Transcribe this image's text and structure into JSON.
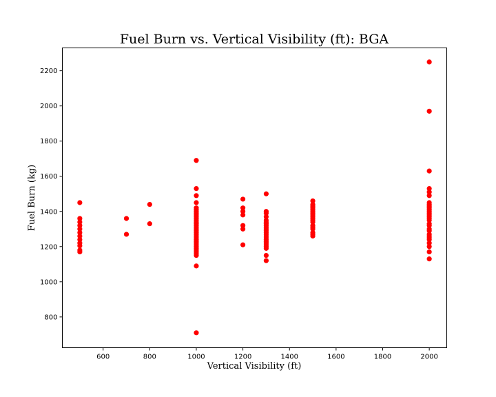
{
  "chart_data": {
    "type": "scatter",
    "title": "Fuel Burn vs. Vertical Visibility (ft): BGA",
    "xlabel": "Vertical Visibility (ft)",
    "ylabel": "Fuel Burn (kg)",
    "xlim": [
      425,
      2075
    ],
    "ylim": [
      625,
      2330
    ],
    "xticks": [
      600,
      800,
      1000,
      1200,
      1400,
      1600,
      1800,
      2000
    ],
    "yticks": [
      800,
      1000,
      1200,
      1400,
      1600,
      1800,
      2000,
      2200
    ],
    "grid": false,
    "marker_color": "#ff0000",
    "series": [
      {
        "points": [
          [
            500,
            1450
          ],
          [
            500,
            1360
          ],
          [
            500,
            1340
          ],
          [
            500,
            1320
          ],
          [
            500,
            1300
          ],
          [
            500,
            1280
          ],
          [
            500,
            1260
          ],
          [
            500,
            1240
          ],
          [
            500,
            1220
          ],
          [
            500,
            1205
          ],
          [
            500,
            1180
          ],
          [
            500,
            1170
          ],
          [
            700,
            1360
          ],
          [
            700,
            1270
          ],
          [
            800,
            1440
          ],
          [
            800,
            1330
          ],
          [
            1000,
            1690
          ],
          [
            1000,
            1530
          ],
          [
            1000,
            1490
          ],
          [
            1000,
            1450
          ],
          [
            1000,
            1420
          ],
          [
            1000,
            1410
          ],
          [
            1000,
            1400
          ],
          [
            1000,
            1390
          ],
          [
            1000,
            1380
          ],
          [
            1000,
            1370
          ],
          [
            1000,
            1360
          ],
          [
            1000,
            1350
          ],
          [
            1000,
            1340
          ],
          [
            1000,
            1330
          ],
          [
            1000,
            1320
          ],
          [
            1000,
            1310
          ],
          [
            1000,
            1300
          ],
          [
            1000,
            1290
          ],
          [
            1000,
            1280
          ],
          [
            1000,
            1270
          ],
          [
            1000,
            1260
          ],
          [
            1000,
            1250
          ],
          [
            1000,
            1240
          ],
          [
            1000,
            1230
          ],
          [
            1000,
            1220
          ],
          [
            1000,
            1210
          ],
          [
            1000,
            1200
          ],
          [
            1000,
            1190
          ],
          [
            1000,
            1180
          ],
          [
            1000,
            1170
          ],
          [
            1000,
            1160
          ],
          [
            1000,
            1150
          ],
          [
            1000,
            1090
          ],
          [
            1000,
            710
          ],
          [
            1200,
            1470
          ],
          [
            1200,
            1420
          ],
          [
            1200,
            1400
          ],
          [
            1200,
            1380
          ],
          [
            1200,
            1320
          ],
          [
            1200,
            1300
          ],
          [
            1200,
            1210
          ],
          [
            1300,
            1500
          ],
          [
            1300,
            1400
          ],
          [
            1300,
            1390
          ],
          [
            1300,
            1370
          ],
          [
            1300,
            1350
          ],
          [
            1300,
            1340
          ],
          [
            1300,
            1330
          ],
          [
            1300,
            1320
          ],
          [
            1300,
            1310
          ],
          [
            1300,
            1300
          ],
          [
            1300,
            1290
          ],
          [
            1300,
            1280
          ],
          [
            1300,
            1270
          ],
          [
            1300,
            1260
          ],
          [
            1300,
            1250
          ],
          [
            1300,
            1240
          ],
          [
            1300,
            1230
          ],
          [
            1300,
            1220
          ],
          [
            1300,
            1210
          ],
          [
            1300,
            1200
          ],
          [
            1300,
            1190
          ],
          [
            1300,
            1150
          ],
          [
            1300,
            1120
          ],
          [
            1500,
            1460
          ],
          [
            1500,
            1440
          ],
          [
            1500,
            1430
          ],
          [
            1500,
            1420
          ],
          [
            1500,
            1410
          ],
          [
            1500,
            1400
          ],
          [
            1500,
            1390
          ],
          [
            1500,
            1380
          ],
          [
            1500,
            1370
          ],
          [
            1500,
            1360
          ],
          [
            1500,
            1350
          ],
          [
            1500,
            1340
          ],
          [
            1500,
            1320
          ],
          [
            1500,
            1310
          ],
          [
            1500,
            1300
          ],
          [
            1500,
            1280
          ],
          [
            1500,
            1270
          ],
          [
            1500,
            1260
          ],
          [
            2000,
            2250
          ],
          [
            2000,
            1970
          ],
          [
            2000,
            1630
          ],
          [
            2000,
            1530
          ],
          [
            2000,
            1510
          ],
          [
            2000,
            1490
          ],
          [
            2000,
            1450
          ],
          [
            2000,
            1440
          ],
          [
            2000,
            1430
          ],
          [
            2000,
            1420
          ],
          [
            2000,
            1410
          ],
          [
            2000,
            1400
          ],
          [
            2000,
            1390
          ],
          [
            2000,
            1380
          ],
          [
            2000,
            1370
          ],
          [
            2000,
            1360
          ],
          [
            2000,
            1350
          ],
          [
            2000,
            1330
          ],
          [
            2000,
            1320
          ],
          [
            2000,
            1300
          ],
          [
            2000,
            1290
          ],
          [
            2000,
            1270
          ],
          [
            2000,
            1260
          ],
          [
            2000,
            1250
          ],
          [
            2000,
            1240
          ],
          [
            2000,
            1220
          ],
          [
            2000,
            1200
          ],
          [
            2000,
            1170
          ],
          [
            2000,
            1130
          ]
        ]
      }
    ]
  }
}
